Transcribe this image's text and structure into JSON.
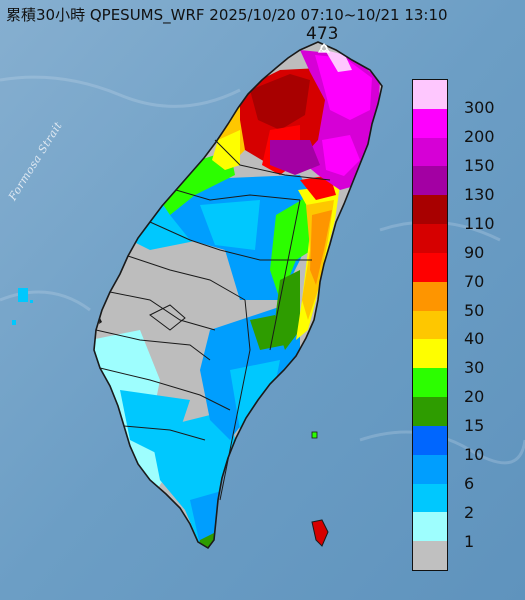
{
  "title": "累積30小時 QPESUMS_WRF 2025/10/20 07:10~10/21 13:10",
  "max_value": "473",
  "strait_label": "Formosa Strait",
  "legend": {
    "labels": [
      "300",
      "200",
      "150",
      "130",
      "110",
      "90",
      "70",
      "50",
      "40",
      "30",
      "20",
      "15",
      "10",
      "6",
      "2",
      "1"
    ],
    "colors": [
      "#fec7fe",
      "#fe00fe",
      "#d600d6",
      "#a300a3",
      "#a80000",
      "#d60000",
      "#fe0000",
      "#fe9500",
      "#fec700",
      "#fefe00",
      "#2cfe00",
      "#2e9c00",
      "#0066fe",
      "#009efe",
      "#00c8fe",
      "#9efefe",
      "#c0c0c0"
    ]
  },
  "colors": {
    "ocean": "#6b9ec4",
    "no_rain_land": "#bdbdbd",
    "boundary": "#1a1a1a"
  }
}
